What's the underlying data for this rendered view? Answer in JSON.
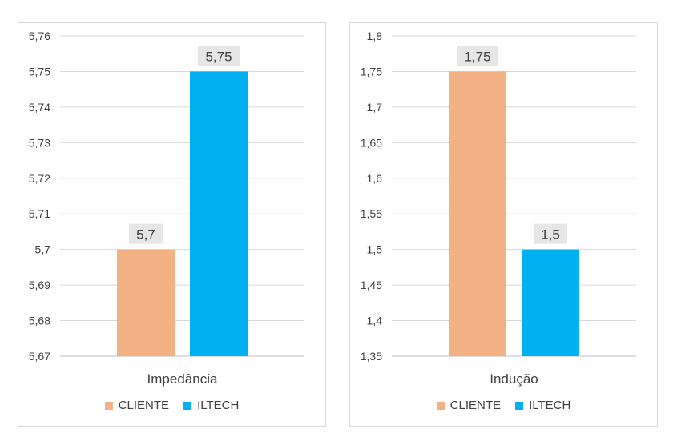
{
  "chart_data": [
    {
      "type": "bar",
      "xlabel": "Impedância",
      "categories": [
        "Impedância"
      ],
      "series": [
        {
          "name": "CLIENTE",
          "values": [
            5.7
          ],
          "label": "5,7",
          "color": "#f4b183"
        },
        {
          "name": "ILTECH",
          "values": [
            5.75
          ],
          "label": "5,75",
          "color": "#00b0f0"
        }
      ],
      "ylim": [
        5.67,
        5.76
      ],
      "yticks": [
        "5,67",
        "5,68",
        "5,69",
        "5,7",
        "5,71",
        "5,72",
        "5,73",
        "5,74",
        "5,75",
        "5,76"
      ],
      "grid": true,
      "legend_position": "bottom"
    },
    {
      "type": "bar",
      "xlabel": "Indução",
      "categories": [
        "Indução"
      ],
      "series": [
        {
          "name": "CLIENTE",
          "values": [
            1.75
          ],
          "label": "1,75",
          "color": "#f4b183"
        },
        {
          "name": "ILTECH",
          "values": [
            1.5
          ],
          "label": "1,5",
          "color": "#00b0f0"
        }
      ],
      "ylim": [
        1.35,
        1.8
      ],
      "yticks": [
        "1,35",
        "1,4",
        "1,45",
        "1,5",
        "1,55",
        "1,6",
        "1,65",
        "1,7",
        "1,75",
        "1,8"
      ],
      "grid": true,
      "legend_position": "bottom"
    }
  ]
}
